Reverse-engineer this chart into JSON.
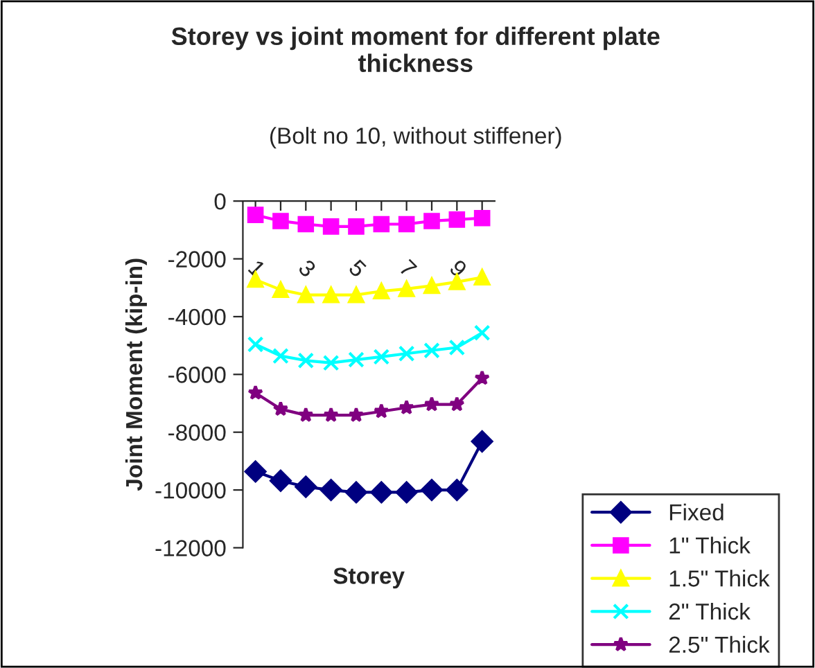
{
  "chart_data": {
    "type": "line",
    "title": "Storey vs joint moment for different plate thickness",
    "subtitle": "(Bolt no 10, without stiffener)",
    "xlabel": "Storey",
    "ylabel": "Joint Moment (kip-in)",
    "categories": [
      "1",
      null,
      "3",
      null,
      "5",
      null,
      "7",
      null,
      "9",
      null
    ],
    "ylim": [
      -12000,
      0
    ],
    "yticks": [
      -12000,
      -10000,
      -8000,
      -6000,
      -4000,
      -2000,
      0
    ],
    "grid": false,
    "legend": "bottom right",
    "line_style": "solid",
    "series": [
      {
        "name": "Fixed",
        "color": "#000080",
        "marker": "diamond",
        "values": [
          -9360,
          -9680,
          -9890,
          -10000,
          -10080,
          -10080,
          -10080,
          -10000,
          -10000,
          -8320
        ]
      },
      {
        "name": "1\" Thick",
        "color": "#ff00ff",
        "marker": "square",
        "values": [
          -480,
          -690,
          -800,
          -880,
          -880,
          -800,
          -800,
          -690,
          -640,
          -590
        ]
      },
      {
        "name": "1.5\" Thick",
        "color": "#ffff00",
        "marker": "triangle",
        "values": [
          -2720,
          -3070,
          -3250,
          -3250,
          -3250,
          -3120,
          -3040,
          -2930,
          -2800,
          -2640
        ]
      },
      {
        "name": "2\" Thick",
        "color": "#00ffff",
        "marker": "cross",
        "values": [
          -4960,
          -5360,
          -5520,
          -5600,
          -5490,
          -5390,
          -5280,
          -5170,
          -5070,
          -4560
        ]
      },
      {
        "name": "2.5\" Thick",
        "color": "#800080",
        "marker": "star",
        "values": [
          -6640,
          -7200,
          -7410,
          -7410,
          -7410,
          -7280,
          -7150,
          -7040,
          -7040,
          -6130
        ]
      }
    ]
  }
}
